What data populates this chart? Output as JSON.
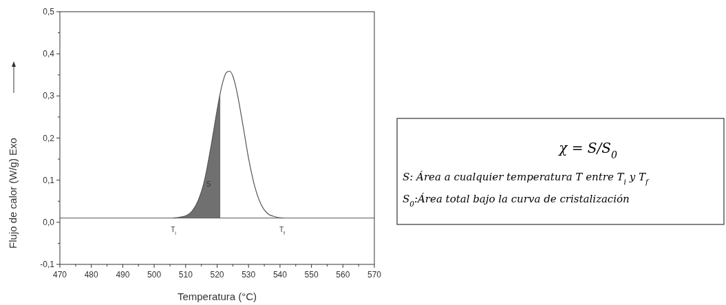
{
  "chart_data": {
    "type": "line",
    "xlabel": "Temperatura (°C)",
    "ylabel": "Flujo de calor (W/g) Exo",
    "xlim": [
      470,
      570
    ],
    "ylim": [
      -0.1,
      0.5
    ],
    "xticks": [
      470,
      {
        "value": 475,
        "label": null
      },
      480,
      {
        "value": 485,
        "label": null
      },
      490,
      {
        "value": 495,
        "label": null
      },
      500,
      {
        "value": 505,
        "label": null
      },
      510,
      {
        "value": 515,
        "label": null
      },
      520,
      {
        "value": 525,
        "label": null
      },
      530,
      {
        "value": 535,
        "label": null
      },
      540,
      {
        "value": 545,
        "label": null
      },
      550,
      {
        "value": 555,
        "label": null
      },
      560,
      {
        "value": 565,
        "label": null
      },
      570
    ],
    "yticks": [
      {
        "value": -0.1,
        "label": "-0,1"
      },
      {
        "value": -0.05,
        "label": null
      },
      {
        "value": 0,
        "label": "0,0"
      },
      {
        "value": 0.05,
        "label": null
      },
      {
        "value": 0.1,
        "label": "0,1"
      },
      {
        "value": 0.15,
        "label": null
      },
      {
        "value": 0.2,
        "label": "0,2"
      },
      {
        "value": 0.25,
        "label": null
      },
      {
        "value": 0.3,
        "label": "0,3"
      },
      {
        "value": 0.35,
        "label": null
      },
      {
        "value": 0.4,
        "label": "0,4"
      },
      {
        "value": 0.45,
        "label": null
      },
      {
        "value": 0.5,
        "label": "0,5"
      }
    ],
    "grid": false,
    "ref_lines": [
      {
        "axis": "y",
        "value": 0.01,
        "color": "#555555"
      }
    ],
    "series": [
      {
        "type": "area",
        "color": "#707070",
        "x": [
          506,
          508,
          510,
          512,
          514,
          516,
          518,
          520,
          521
        ],
        "values": [
          0.01,
          0.012,
          0.015,
          0.026,
          0.052,
          0.1,
          0.178,
          0.267,
          0.307
        ]
      },
      {
        "type": "line",
        "color": "#555555",
        "x": [
          506,
          508,
          510,
          512,
          514,
          516,
          518,
          520,
          521,
          522,
          523,
          524,
          525,
          526,
          528,
          530,
          532,
          534,
          536,
          538,
          541
        ],
        "values": [
          0.01,
          0.012,
          0.015,
          0.026,
          0.052,
          0.1,
          0.178,
          0.267,
          0.307,
          0.338,
          0.356,
          0.359,
          0.347,
          0.32,
          0.24,
          0.152,
          0.084,
          0.042,
          0.021,
          0.014,
          0.01
        ]
      }
    ],
    "annotations": [
      "S",
      "T$_{i}$",
      "T$_{f}$",
      "χ = S/S$_{0}$",
      "S: Área a cualquier temperatura T entre T$_{i}$ y T$_{f}$",
      "S$_{0}$:Área total bajo la curva de cristalización"
    ]
  }
}
